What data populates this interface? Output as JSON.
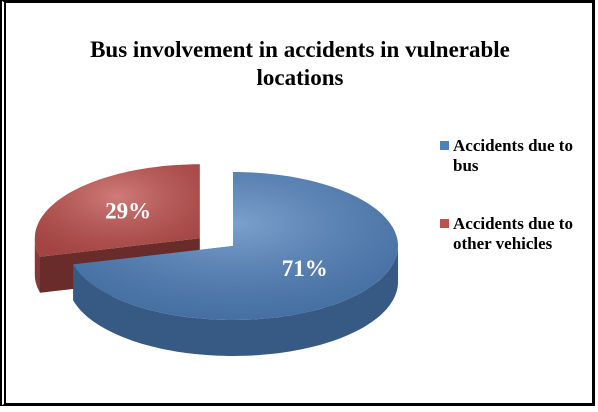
{
  "chart_data": {
    "type": "pie",
    "title": "Bus involvement in accidents in vulnerable locations",
    "categories": [
      "Accidents due to bus",
      "Accidents due to other vehicles"
    ],
    "values": [
      71,
      29
    ],
    "value_labels": [
      "71%",
      "29%"
    ],
    "colors": [
      "#4f81bd",
      "#c0504d"
    ],
    "legend": "right"
  }
}
